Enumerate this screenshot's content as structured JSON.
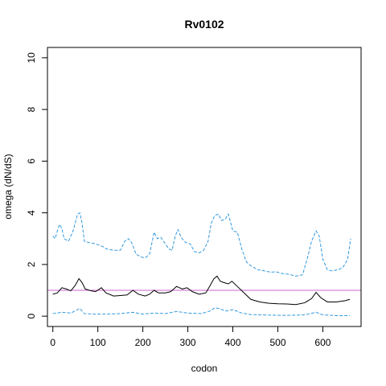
{
  "chart_data": {
    "type": "line",
    "title": "Rv0102",
    "xlabel": "codon",
    "ylabel": "omega (dN/dS)",
    "xlim": [
      -12,
      685
    ],
    "ylim": [
      -0.4,
      10.4
    ],
    "x_ticks": [
      0,
      100,
      200,
      300,
      400,
      500,
      600
    ],
    "y_ticks": [
      0,
      2,
      4,
      6,
      8,
      10
    ],
    "grid": false,
    "legend": "none",
    "reference_line": {
      "y": 1,
      "color": "#cc66cc"
    },
    "series": [
      {
        "style": "solid",
        "color": "#000000",
        "points": [
          [
            0,
            0.85
          ],
          [
            10,
            0.9
          ],
          [
            20,
            1.1
          ],
          [
            30,
            1.05
          ],
          [
            40,
            0.98
          ],
          [
            50,
            1.2
          ],
          [
            58,
            1.45
          ],
          [
            65,
            1.3
          ],
          [
            72,
            1.05
          ],
          [
            85,
            0.98
          ],
          [
            95,
            0.95
          ],
          [
            108,
            1.1
          ],
          [
            118,
            0.9
          ],
          [
            135,
            0.78
          ],
          [
            150,
            0.8
          ],
          [
            165,
            0.82
          ],
          [
            178,
            1.0
          ],
          [
            190,
            0.85
          ],
          [
            205,
            0.78
          ],
          [
            215,
            0.85
          ],
          [
            225,
            1.0
          ],
          [
            235,
            0.9
          ],
          [
            250,
            0.9
          ],
          [
            262,
            0.95
          ],
          [
            275,
            1.15
          ],
          [
            288,
            1.05
          ],
          [
            298,
            1.1
          ],
          [
            310,
            0.95
          ],
          [
            325,
            0.85
          ],
          [
            340,
            0.9
          ],
          [
            350,
            1.2
          ],
          [
            358,
            1.45
          ],
          [
            365,
            1.55
          ],
          [
            372,
            1.35
          ],
          [
            380,
            1.3
          ],
          [
            390,
            1.25
          ],
          [
            398,
            1.35
          ],
          [
            410,
            1.15
          ],
          [
            425,
            0.9
          ],
          [
            440,
            0.65
          ],
          [
            460,
            0.55
          ],
          [
            480,
            0.5
          ],
          [
            500,
            0.48
          ],
          [
            520,
            0.47
          ],
          [
            540,
            0.45
          ],
          [
            560,
            0.52
          ],
          [
            575,
            0.68
          ],
          [
            585,
            0.92
          ],
          [
            595,
            0.72
          ],
          [
            610,
            0.55
          ],
          [
            630,
            0.55
          ],
          [
            650,
            0.6
          ],
          [
            660,
            0.65
          ]
        ]
      },
      {
        "style": "dashed",
        "color": "#3399dd",
        "points": [
          [
            0,
            3.1
          ],
          [
            5,
            3.0
          ],
          [
            10,
            3.3
          ],
          [
            15,
            3.55
          ],
          [
            20,
            3.4
          ],
          [
            25,
            3.0
          ],
          [
            35,
            2.9
          ],
          [
            45,
            3.3
          ],
          [
            55,
            3.95
          ],
          [
            60,
            4.0
          ],
          [
            65,
            3.6
          ],
          [
            70,
            2.9
          ],
          [
            80,
            2.85
          ],
          [
            95,
            2.8
          ],
          [
            110,
            2.7
          ],
          [
            120,
            2.6
          ],
          [
            135,
            2.55
          ],
          [
            150,
            2.55
          ],
          [
            160,
            2.9
          ],
          [
            168,
            3.0
          ],
          [
            175,
            2.85
          ],
          [
            185,
            2.4
          ],
          [
            195,
            2.3
          ],
          [
            205,
            2.25
          ],
          [
            215,
            2.4
          ],
          [
            225,
            3.25
          ],
          [
            232,
            3.0
          ],
          [
            240,
            3.05
          ],
          [
            250,
            2.8
          ],
          [
            258,
            2.6
          ],
          [
            265,
            2.55
          ],
          [
            272,
            3.1
          ],
          [
            278,
            3.35
          ],
          [
            285,
            3.05
          ],
          [
            295,
            2.85
          ],
          [
            305,
            2.8
          ],
          [
            315,
            2.5
          ],
          [
            325,
            2.45
          ],
          [
            335,
            2.55
          ],
          [
            345,
            2.9
          ],
          [
            352,
            3.6
          ],
          [
            360,
            3.9
          ],
          [
            368,
            3.95
          ],
          [
            375,
            3.7
          ],
          [
            383,
            3.75
          ],
          [
            390,
            3.95
          ],
          [
            400,
            3.3
          ],
          [
            410,
            3.25
          ],
          [
            420,
            2.6
          ],
          [
            430,
            2.1
          ],
          [
            440,
            1.95
          ],
          [
            455,
            1.8
          ],
          [
            470,
            1.75
          ],
          [
            485,
            1.7
          ],
          [
            495,
            1.72
          ],
          [
            510,
            1.65
          ],
          [
            525,
            1.62
          ],
          [
            540,
            1.55
          ],
          [
            555,
            1.6
          ],
          [
            565,
            2.2
          ],
          [
            575,
            2.9
          ],
          [
            585,
            3.3
          ],
          [
            592,
            3.1
          ],
          [
            600,
            2.2
          ],
          [
            610,
            1.8
          ],
          [
            620,
            1.75
          ],
          [
            635,
            1.8
          ],
          [
            645,
            1.9
          ],
          [
            655,
            2.2
          ],
          [
            662,
            3.0
          ]
        ]
      },
      {
        "style": "dashed",
        "color": "#3399dd",
        "points": [
          [
            0,
            0.1
          ],
          [
            20,
            0.15
          ],
          [
            40,
            0.12
          ],
          [
            55,
            0.25
          ],
          [
            60,
            0.3
          ],
          [
            70,
            0.1
          ],
          [
            90,
            0.08
          ],
          [
            120,
            0.08
          ],
          [
            150,
            0.1
          ],
          [
            178,
            0.15
          ],
          [
            200,
            0.08
          ],
          [
            225,
            0.12
          ],
          [
            250,
            0.1
          ],
          [
            275,
            0.18
          ],
          [
            300,
            0.12
          ],
          [
            330,
            0.1
          ],
          [
            350,
            0.2
          ],
          [
            360,
            0.32
          ],
          [
            368,
            0.3
          ],
          [
            385,
            0.2
          ],
          [
            400,
            0.25
          ],
          [
            420,
            0.12
          ],
          [
            440,
            0.06
          ],
          [
            480,
            0.04
          ],
          [
            520,
            0.03
          ],
          [
            560,
            0.05
          ],
          [
            585,
            0.15
          ],
          [
            600,
            0.05
          ],
          [
            630,
            0.02
          ],
          [
            660,
            0.02
          ]
        ]
      }
    ]
  }
}
